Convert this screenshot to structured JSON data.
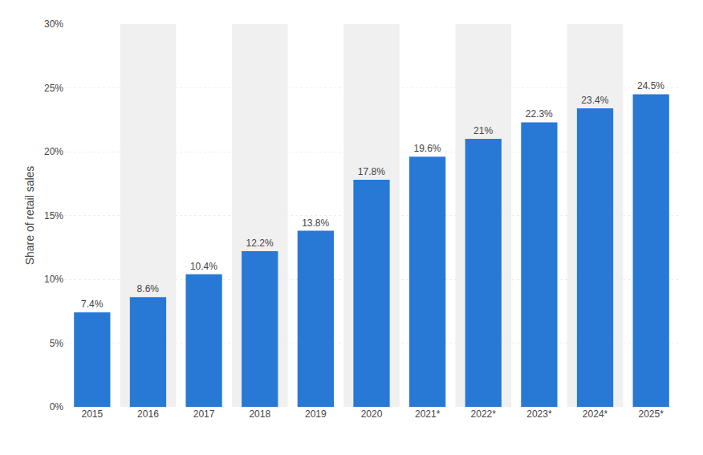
{
  "chart_data": {
    "type": "bar",
    "categories": [
      "2015",
      "2016",
      "2017",
      "2018",
      "2019",
      "2020",
      "2021*",
      "2022*",
      "2023*",
      "2024*",
      "2025*"
    ],
    "values": [
      7.4,
      8.6,
      10.4,
      12.2,
      13.8,
      17.8,
      19.6,
      21.0,
      22.3,
      23.4,
      24.5
    ],
    "value_labels": [
      "7.4%",
      "8.6%",
      "10.4%",
      "12.2%",
      "13.8%",
      "17.8%",
      "19.6%",
      "21%",
      "22.3%",
      "23.4%",
      "24.5%"
    ],
    "data_labels": true,
    "color": "#2878d6",
    "ylabel": "Share of retail sales",
    "ylim": [
      0,
      30
    ],
    "yticks": [
      {
        "value": 0,
        "label": "0%"
      },
      {
        "value": 5,
        "label": "5%"
      },
      {
        "value": 10,
        "label": "10%"
      },
      {
        "value": 15,
        "label": "15%"
      },
      {
        "value": 20,
        "label": "20%"
      },
      {
        "value": 25,
        "label": "25%"
      },
      {
        "value": 30,
        "label": "30%"
      }
    ],
    "grid": true
  }
}
